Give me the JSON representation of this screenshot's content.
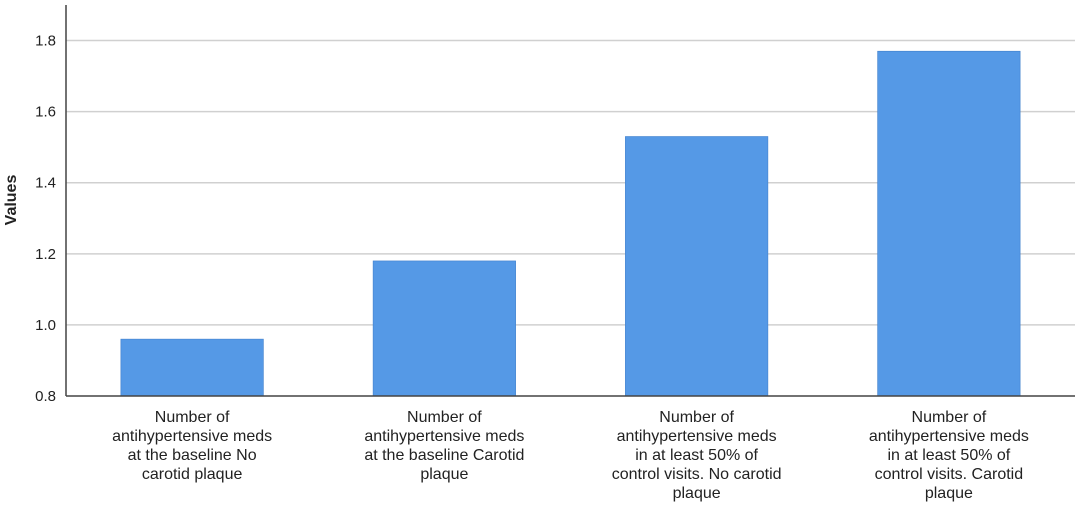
{
  "chart_data": {
    "type": "bar",
    "title": "",
    "xlabel": "",
    "ylabel": "Values",
    "ylim": [
      0.8,
      1.9
    ],
    "yticks": [
      "0.8",
      "1.0",
      "1.2",
      "1.4",
      "1.6",
      "1.8"
    ],
    "grid": true,
    "bar_color": "#5599e6",
    "categories": [
      [
        "Number of",
        "antihypertensive meds",
        "at the baseline No",
        "carotid plaque"
      ],
      [
        "Number of",
        "antihypertensive meds",
        "at the baseline Carotid",
        "plaque"
      ],
      [
        "Number of",
        "antihypertensive meds",
        "in at least 50% of",
        "control visits. No carotid",
        "plaque"
      ],
      [
        "Number of",
        "antihypertensive meds",
        "in at least 50% of",
        "control visits. Carotid",
        "plaque"
      ]
    ],
    "values": [
      0.96,
      1.18,
      1.53,
      1.77
    ]
  }
}
